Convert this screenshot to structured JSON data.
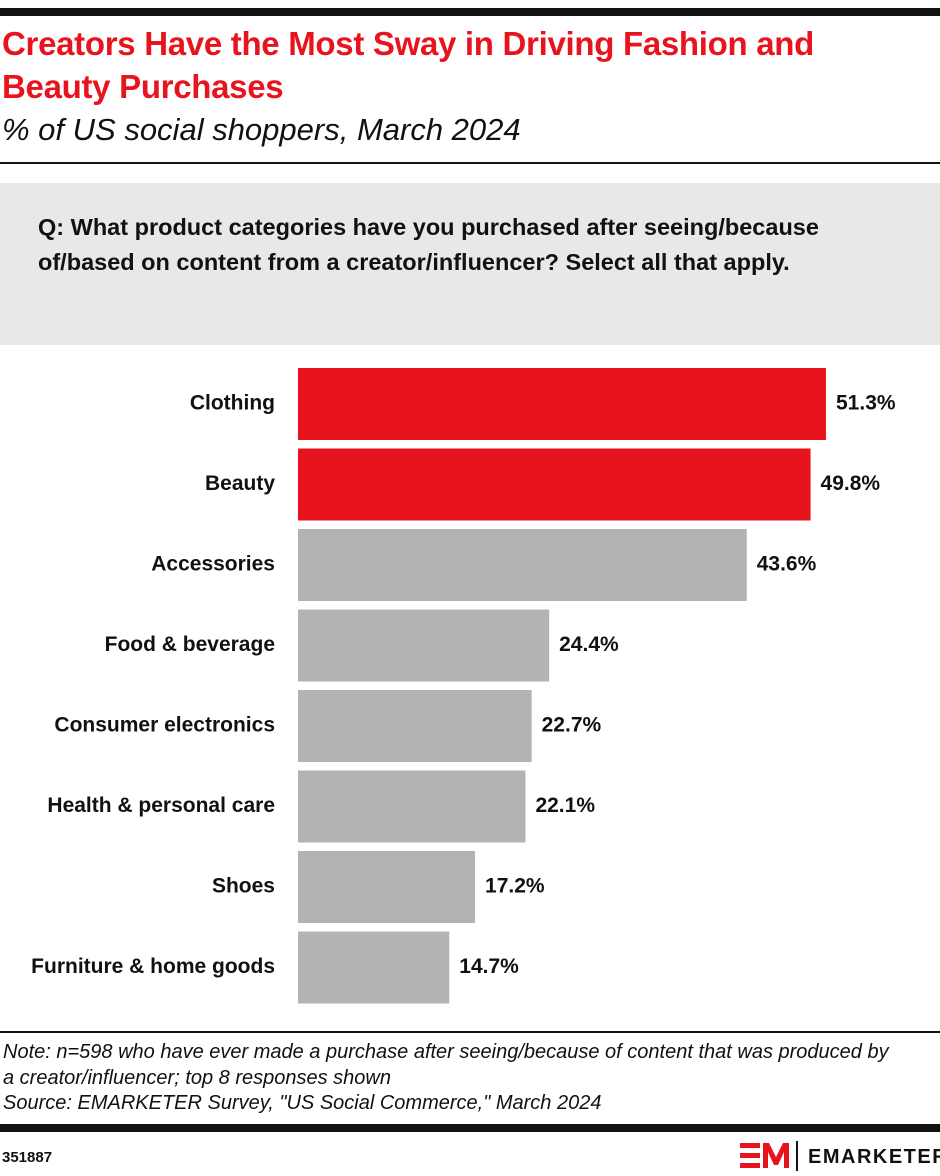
{
  "chart_data": {
    "type": "bar",
    "orientation": "horizontal",
    "title": "Creators Have the Most Sway in Driving Fashion and Beauty Purchases",
    "subtitle": "% of US social shoppers, March 2024",
    "question": "Q: What product categories have you purchased after seeing/because of/based on content from a creator/influencer? Select all that apply.",
    "categories": [
      "Clothing",
      "Beauty",
      "Accessories",
      "Food & beverage",
      "Consumer electronics",
      "Health & personal care",
      "Shoes",
      "Furniture & home goods"
    ],
    "values": [
      51.3,
      49.8,
      43.6,
      24.4,
      22.7,
      22.1,
      17.2,
      14.7
    ],
    "value_labels": [
      "51.3%",
      "49.8%",
      "43.6%",
      "24.4%",
      "22.7%",
      "22.1%",
      "17.2%",
      "14.7%"
    ],
    "colors": [
      "#e8141d",
      "#e8141d",
      "#b3b3b3",
      "#b3b3b3",
      "#b3b3b3",
      "#b3b3b3",
      "#b3b3b3",
      "#b3b3b3"
    ],
    "note": "Note: n=598 who have ever made a purchase after seeing/because of content that was produced by a creator/influencer; top 8 responses shown",
    "source": "Source: EMARKETER Survey, \"US Social Commerce,\" March 2024",
    "chart_id": "351887",
    "brand": "EMARKETER"
  }
}
